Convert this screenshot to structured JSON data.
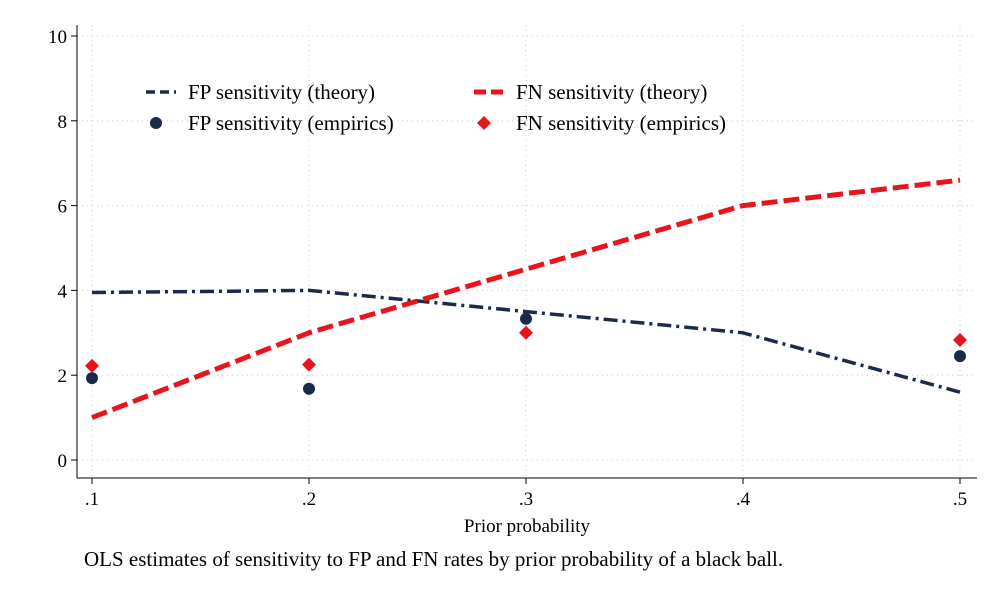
{
  "chart_data": {
    "type": "line",
    "title": "",
    "xlabel": "Prior probability",
    "ylabel": "",
    "x": [
      0.1,
      0.2,
      0.3,
      0.4,
      0.5
    ],
    "x_tick_labels": [
      ".1",
      ".2",
      ".3",
      ".4",
      ".5"
    ],
    "y_ticks": [
      0,
      2,
      4,
      6,
      8,
      10
    ],
    "y_tick_labels": [
      "0",
      "2",
      "4",
      "6",
      "8",
      "10"
    ],
    "xlim": [
      0.1,
      0.5
    ],
    "ylim": [
      0,
      10
    ],
    "grid": true,
    "legend_position": "top",
    "series": [
      {
        "name": "FP sensitivity (theory)",
        "kind": "line",
        "style": "dash-dot",
        "color": "#1a2a4a",
        "x": [
          0.1,
          0.2,
          0.3,
          0.4,
          0.5
        ],
        "values": [
          3.95,
          4.0,
          3.5,
          3.0,
          1.6
        ]
      },
      {
        "name": "FN sensitivity (theory)",
        "kind": "line",
        "style": "dashed",
        "color": "#e8141b",
        "x": [
          0.1,
          0.2,
          0.3,
          0.4,
          0.5
        ],
        "values": [
          1.0,
          3.0,
          4.5,
          6.0,
          6.6
        ]
      },
      {
        "name": "FP sensitivity (empirics)",
        "kind": "scatter",
        "marker": "circle",
        "color": "#1a2a4a",
        "x": [
          0.1,
          0.2,
          0.3,
          0.5
        ],
        "values": [
          1.93,
          1.68,
          3.33,
          2.45
        ]
      },
      {
        "name": "FN sensitivity (empirics)",
        "kind": "scatter",
        "marker": "diamond",
        "color": "#e8141b",
        "x": [
          0.1,
          0.2,
          0.3,
          0.5
        ],
        "values": [
          2.22,
          2.25,
          3.0,
          2.83
        ]
      }
    ]
  },
  "caption": "OLS estimates of sensitivity to FP and FN rates by prior probability of a black ball."
}
